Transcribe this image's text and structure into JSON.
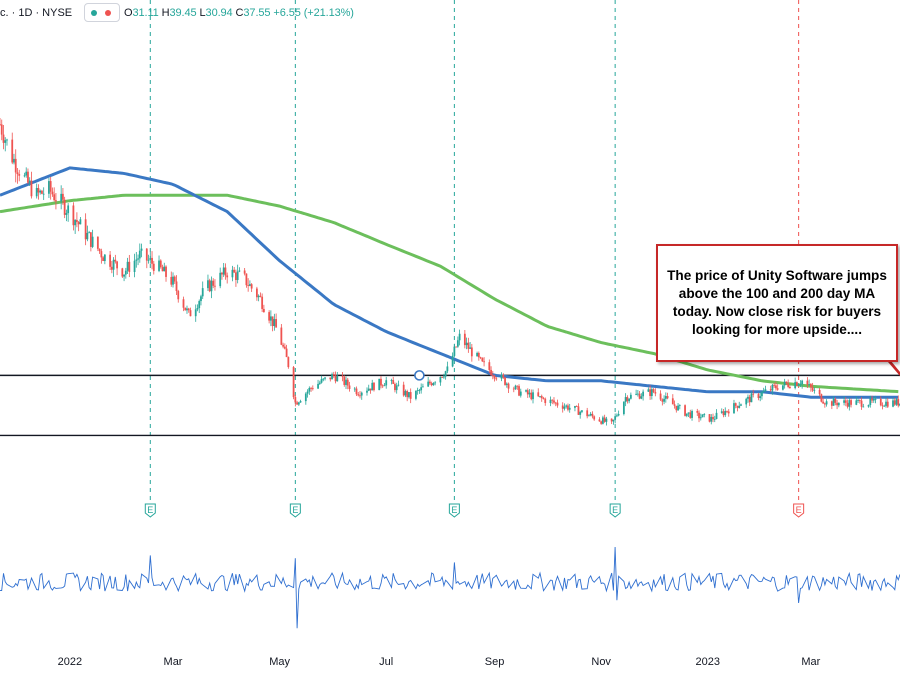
{
  "header": {
    "symbol_text": "c. · 1D · NYSE",
    "open_label": "O",
    "open": "31.11",
    "high_label": "H",
    "high": "39.45",
    "low_label": "L",
    "low": "30.94",
    "close_label": "C",
    "close": "37.55",
    "change": "+6.55 (+21.13%)"
  },
  "annotation": {
    "text": "The price of Unity Software jumps above the 100 and 200 day MA  today. Now close risk for buyers looking for more upside...."
  },
  "colors": {
    "up": "#26a69a",
    "down": "#ef5350",
    "ma100": "#3a78c4",
    "ma200": "#6cbf5c",
    "earnings_line": "#26a69a",
    "earnings_future": "#ef5350",
    "volume_line": "#2f6fd0",
    "callout_border": "#c62828"
  },
  "chart_data": {
    "type": "line",
    "title": "",
    "xlabel": "",
    "ylabel": "",
    "x_ticks": [
      "2022",
      "Mar",
      "May",
      "Jul",
      "Sep",
      "Nov",
      "2023",
      "Mar"
    ],
    "x_range": [
      "2021-11-22",
      "2023-04-21"
    ],
    "ylim": [
      15,
      100
    ],
    "grid": false,
    "price_series": {
      "name": "",
      "points": [
        [
          "2021-11-22",
          82
        ],
        [
          "2021-11-29",
          76
        ],
        [
          "2021-12-06",
          72
        ],
        [
          "2021-12-13",
          69
        ],
        [
          "2021-12-20",
          70
        ],
        [
          "2022-01-01",
          66
        ],
        [
          "2022-01-10",
          62
        ],
        [
          "2022-01-20",
          58
        ],
        [
          "2022-02-01",
          55
        ],
        [
          "2022-02-10",
          58
        ],
        [
          "2022-02-20",
          56
        ],
        [
          "2022-03-01",
          53
        ],
        [
          "2022-03-10",
          47
        ],
        [
          "2022-03-20",
          52
        ],
        [
          "2022-04-01",
          55
        ],
        [
          "2022-04-10",
          54
        ],
        [
          "2022-04-20",
          50
        ],
        [
          "2022-04-30",
          44
        ],
        [
          "2022-05-06",
          38
        ],
        [
          "2022-05-10",
          31
        ],
        [
          "2022-05-20",
          34
        ],
        [
          "2022-06-01",
          36
        ],
        [
          "2022-06-15",
          33
        ],
        [
          "2022-07-01",
          35
        ],
        [
          "2022-07-15",
          32
        ],
        [
          "2022-08-01",
          36
        ],
        [
          "2022-08-05",
          37
        ],
        [
          "2022-08-12",
          43
        ],
        [
          "2022-08-25",
          38
        ],
        [
          "2022-09-15",
          33
        ],
        [
          "2022-10-15",
          30
        ],
        [
          "2022-11-07",
          27
        ],
        [
          "2022-11-15",
          32
        ],
        [
          "2022-12-01",
          33
        ],
        [
          "2022-12-20",
          29
        ],
        [
          "2023-01-03",
          28
        ],
        [
          "2023-01-20",
          31
        ],
        [
          "2023-02-10",
          34
        ],
        [
          "2023-02-24",
          35
        ],
        [
          "2023-03-10",
          31
        ],
        [
          "2023-04-21",
          31
        ]
      ]
    },
    "series": [
      {
        "name": "",
        "points": [
          [
            "2021-11-22",
            69
          ],
          [
            "2022-01-01",
            74
          ],
          [
            "2022-02-01",
            73
          ],
          [
            "2022-03-01",
            71
          ],
          [
            "2022-04-01",
            66
          ],
          [
            "2022-05-01",
            57
          ],
          [
            "2022-06-01",
            49
          ],
          [
            "2022-07-01",
            44
          ],
          [
            "2022-08-01",
            40
          ],
          [
            "2022-09-01",
            36
          ],
          [
            "2022-10-01",
            35
          ],
          [
            "2022-11-01",
            35
          ],
          [
            "2022-12-01",
            34
          ],
          [
            "2023-01-01",
            33
          ],
          [
            "2023-02-01",
            33
          ],
          [
            "2023-03-01",
            32
          ],
          [
            "2023-04-21",
            32
          ]
        ]
      },
      {
        "name": "",
        "points": [
          [
            "2021-11-22",
            66
          ],
          [
            "2022-01-01",
            68
          ],
          [
            "2022-02-01",
            69
          ],
          [
            "2022-03-01",
            69
          ],
          [
            "2022-04-01",
            69
          ],
          [
            "2022-05-01",
            67
          ],
          [
            "2022-06-01",
            64
          ],
          [
            "2022-07-01",
            60
          ],
          [
            "2022-08-01",
            56
          ],
          [
            "2022-09-01",
            50
          ],
          [
            "2022-10-01",
            45
          ],
          [
            "2022-11-01",
            42
          ],
          [
            "2022-12-01",
            40
          ],
          [
            "2023-01-01",
            37
          ],
          [
            "2023-02-01",
            35
          ],
          [
            "2023-03-01",
            34
          ],
          [
            "2023-04-21",
            33
          ]
        ]
      }
    ],
    "horizontal_levels": [
      36,
      25
    ],
    "earnings_dates": [
      {
        "date": "2022-02-16",
        "label": "E",
        "state": "past"
      },
      {
        "date": "2022-05-10",
        "label": "E",
        "state": "past"
      },
      {
        "date": "2022-08-09",
        "label": "E",
        "state": "past"
      },
      {
        "date": "2022-11-09",
        "label": "E",
        "state": "past"
      },
      {
        "date": "2023-02-22",
        "label": "E",
        "state": "today"
      }
    ],
    "volume_spikes": [
      {
        "date": "2022-02-16",
        "value": 1.9
      },
      {
        "date": "2022-05-10",
        "value": 1.7
      },
      {
        "date": "2022-05-11",
        "value": -3.3
      },
      {
        "date": "2022-08-09",
        "value": 1.4
      },
      {
        "date": "2022-11-09",
        "value": 2.5
      },
      {
        "date": "2022-11-10",
        "value": -1.3
      },
      {
        "date": "2023-02-22",
        "value": -1.5
      }
    ]
  }
}
